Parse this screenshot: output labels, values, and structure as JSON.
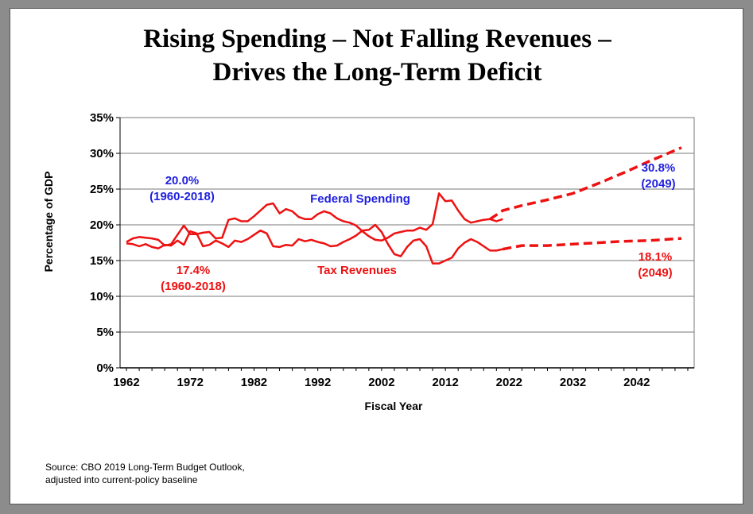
{
  "title_line1": "Rising Spending – Not Falling Revenues –",
  "title_line2": "Drives the Long-Term Deficit",
  "source_line1": "Source: CBO 2019 Long-Term Budget Outlook,",
  "source_line2": "adjusted into current-policy baseline",
  "colors": {
    "spending": "#1f1fe0",
    "revenue": "#ee1111"
  },
  "chart_data": {
    "type": "line",
    "xlabel": "Fiscal Year",
    "ylabel": "Percentage of GDP",
    "xlim": [
      1961,
      2051
    ],
    "ylim": [
      0,
      35
    ],
    "xticks": [
      1962,
      1972,
      1982,
      1992,
      2002,
      2012,
      2022,
      2032,
      2042
    ],
    "yticks": [
      "0%",
      "5%",
      "10%",
      "15%",
      "20%",
      "25%",
      "30%",
      "35%"
    ],
    "grid": true,
    "annotations": {
      "spending_label": "Federal Spending",
      "revenue_label": "Tax Revenues",
      "spending_avg_value": "20.0%",
      "spending_avg_period": "(1960-2018)",
      "revenue_avg_value": "17.4%",
      "revenue_avg_period": "(1960-2018)",
      "spending_end_value": "30.8%",
      "spending_end_year": "(2049)",
      "revenue_end_value": "18.1%",
      "revenue_end_year": "(2049)"
    },
    "series": [
      {
        "name": "Federal Spending",
        "style": "solid",
        "x": [
          1962,
          1963,
          1964,
          1965,
          1966,
          1967,
          1968,
          1969,
          1970,
          1971,
          1972,
          1973,
          1974,
          1975,
          1976,
          1977,
          1978,
          1979,
          1980,
          1981,
          1982,
          1983,
          1984,
          1985,
          1986,
          1987,
          1988,
          1989,
          1990,
          1991,
          1992,
          1993,
          1994,
          1995,
          1996,
          1997,
          1998,
          1999,
          2000,
          2001,
          2002,
          2003,
          2004,
          2005,
          2006,
          2007,
          2008,
          2009,
          2010,
          2011,
          2012,
          2013,
          2014,
          2015,
          2016,
          2017,
          2018,
          2019,
          2020,
          2021
        ],
        "y": [
          17.6,
          18.1,
          18.3,
          18.2,
          18.1,
          17.9,
          17.1,
          17.3,
          18.6,
          19.9,
          18.7,
          18.7,
          18.9,
          19.0,
          18.1,
          18.2,
          20.7,
          20.9,
          20.5,
          20.5,
          21.2,
          22.0,
          22.8,
          23.0,
          21.6,
          22.2,
          21.9,
          21.1,
          20.8,
          20.8,
          21.5,
          21.9,
          21.6,
          20.9,
          20.5,
          20.3,
          19.9,
          19.1,
          18.4,
          17.9,
          17.8,
          18.2,
          18.8,
          19.0,
          19.2,
          19.2,
          19.6,
          19.3,
          20.1,
          24.4,
          23.3,
          23.4,
          22.0,
          20.8,
          20.3,
          20.5,
          20.7,
          20.8,
          20.5,
          20.8
        ]
      },
      {
        "name": "Federal Spending (projected)",
        "style": "dashed",
        "x": [
          2019,
          2021,
          2024,
          2028,
          2032,
          2036,
          2040,
          2044,
          2049
        ],
        "y": [
          20.8,
          22.0,
          22.7,
          23.5,
          24.4,
          25.8,
          27.3,
          28.9,
          30.8
        ]
      },
      {
        "name": "Tax Revenues",
        "style": "solid",
        "x": [
          1962,
          1963,
          1964,
          1965,
          1966,
          1967,
          1968,
          1969,
          1970,
          1971,
          1972,
          1973,
          1974,
          1975,
          1976,
          1977,
          1978,
          1979,
          1980,
          1981,
          1982,
          1983,
          1984,
          1985,
          1986,
          1987,
          1988,
          1989,
          1990,
          1991,
          1992,
          1993,
          1994,
          1995,
          1996,
          1997,
          1998,
          1999,
          2000,
          2001,
          2002,
          2003,
          2004,
          2005,
          2006,
          2007,
          2008,
          2009,
          2010,
          2011,
          2012,
          2013,
          2014,
          2015,
          2016,
          2017,
          2018,
          2019,
          2020,
          2021
        ],
        "y": [
          17.4,
          17.3,
          17.0,
          17.3,
          16.9,
          16.7,
          17.2,
          17.1,
          17.8,
          17.2,
          19.1,
          18.8,
          17.0,
          17.2,
          17.8,
          17.4,
          16.9,
          17.8,
          17.6,
          18.0,
          18.6,
          19.2,
          18.8,
          17.0,
          16.9,
          17.2,
          17.1,
          18.0,
          17.7,
          17.9,
          17.6,
          17.4,
          17.0,
          17.1,
          17.6,
          18.0,
          18.5,
          19.2,
          19.3,
          20.0,
          19.0,
          17.3,
          15.9,
          15.6,
          16.9,
          17.8,
          18.0,
          17.0,
          14.6,
          14.6,
          15.0,
          15.4,
          16.7,
          17.5,
          18.0,
          17.6,
          17.0,
          16.4,
          16.4,
          16.6
        ]
      },
      {
        "name": "Tax Revenues (projected)",
        "style": "dashed",
        "x": [
          2021,
          2024,
          2028,
          2032,
          2036,
          2040,
          2044,
          2049
        ],
        "y": [
          16.6,
          17.1,
          17.1,
          17.3,
          17.5,
          17.7,
          17.8,
          18.1
        ]
      }
    ]
  }
}
